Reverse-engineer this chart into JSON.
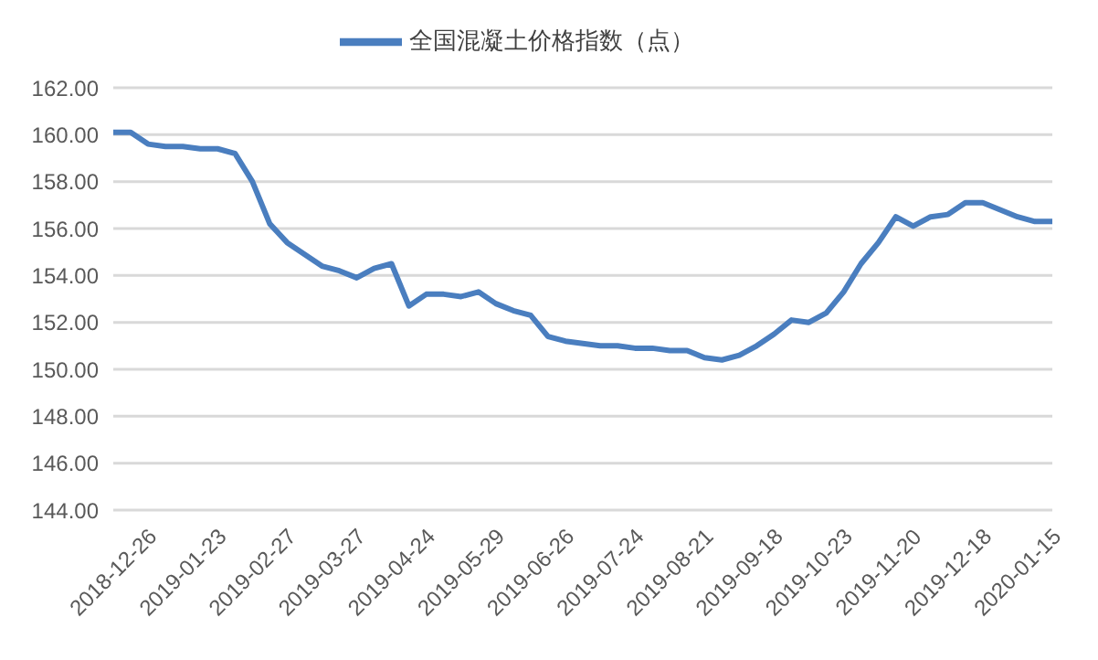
{
  "chart_data": {
    "type": "line",
    "legend": "top",
    "grid": "y",
    "marker": "none",
    "line_style": "solid",
    "categories": [
      "2018-12-26",
      null,
      null,
      null,
      "2019-01-23",
      null,
      null,
      null,
      "2019-02-27",
      null,
      null,
      null,
      "2019-03-27",
      null,
      null,
      null,
      "2019-04-24",
      null,
      null,
      null,
      "2019-05-29",
      null,
      null,
      null,
      "2019-06-26",
      null,
      null,
      null,
      "2019-07-24",
      null,
      null,
      null,
      "2019-08-21",
      null,
      null,
      null,
      "2019-09-18",
      null,
      null,
      null,
      "2019-10-23",
      null,
      null,
      null,
      "2019-11-20",
      null,
      null,
      null,
      "2019-12-18",
      null,
      null,
      null,
      "2020-01-15",
      null,
      null
    ],
    "series": [
      {
        "name": "全国混凝土价格指数（点）",
        "color": "#4a7ebf",
        "values": [
          160.1,
          160.1,
          159.6,
          159.5,
          159.5,
          159.4,
          159.4,
          159.2,
          158.0,
          156.2,
          155.4,
          154.9,
          154.4,
          154.2,
          153.9,
          154.3,
          154.5,
          152.7,
          153.2,
          153.2,
          153.1,
          153.3,
          152.8,
          152.5,
          152.3,
          151.4,
          151.2,
          151.1,
          151.0,
          151.0,
          150.9,
          150.9,
          150.8,
          150.8,
          150.5,
          150.4,
          150.6,
          151.0,
          151.5,
          152.1,
          152.0,
          152.4,
          153.3,
          154.5,
          155.4,
          156.5,
          156.1,
          156.5,
          156.6,
          157.1,
          157.1,
          156.8,
          156.5,
          156.3,
          156.3
        ]
      }
    ],
    "ylim": [
      144,
      162
    ],
    "yticks": [
      {
        "value": 144,
        "label": "144.00"
      },
      {
        "value": 146,
        "label": "146.00"
      },
      {
        "value": 148,
        "label": "148.00"
      },
      {
        "value": 150,
        "label": "150.00"
      },
      {
        "value": 152,
        "label": "152.00"
      },
      {
        "value": 154,
        "label": "154.00"
      },
      {
        "value": 156,
        "label": "156.00"
      },
      {
        "value": 158,
        "label": "158.00"
      },
      {
        "value": 160,
        "label": "160.00"
      },
      {
        "value": 162,
        "label": "162.00"
      }
    ]
  }
}
